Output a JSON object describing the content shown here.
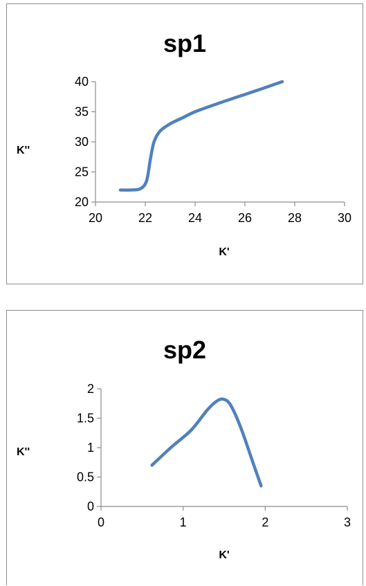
{
  "chart_data": [
    {
      "type": "line",
      "title": "sp1",
      "xlabel": "K'",
      "ylabel": "K''",
      "xlim": [
        20,
        30
      ],
      "ylim": [
        20,
        40
      ],
      "xticks": [
        "20",
        "22",
        "24",
        "26",
        "28",
        "30"
      ],
      "yticks": [
        "20",
        "25",
        "30",
        "35",
        "40"
      ],
      "grid": false,
      "legend": "none",
      "series_color": "#4f81bd",
      "series": [
        {
          "x": [
            21.0,
            21.4,
            21.8,
            22.05,
            22.2,
            22.35,
            22.6,
            23.0,
            23.5,
            24.0,
            24.8,
            25.8,
            26.6,
            27.5
          ],
          "y": [
            22.0,
            22.0,
            22.2,
            23.5,
            27.0,
            30.0,
            31.8,
            33.0,
            34.0,
            35.0,
            36.2,
            37.6,
            38.7,
            40.0
          ]
        }
      ]
    },
    {
      "type": "line",
      "title": "sp2",
      "xlabel": "K'",
      "ylabel": "K''",
      "xlim": [
        0,
        3
      ],
      "ylim": [
        0,
        2
      ],
      "xticks": [
        "0",
        "1",
        "2",
        "3"
      ],
      "yticks": [
        "0",
        "0.5",
        "1",
        "1.5",
        "2"
      ],
      "grid": false,
      "legend": "none",
      "series_color": "#4f81bd",
      "series": [
        {
          "x": [
            0.62,
            0.85,
            1.1,
            1.3,
            1.42,
            1.5,
            1.58,
            1.7,
            1.85,
            1.95
          ],
          "y": [
            0.7,
            1.0,
            1.3,
            1.65,
            1.8,
            1.82,
            1.72,
            1.35,
            0.75,
            0.35
          ]
        }
      ]
    }
  ]
}
